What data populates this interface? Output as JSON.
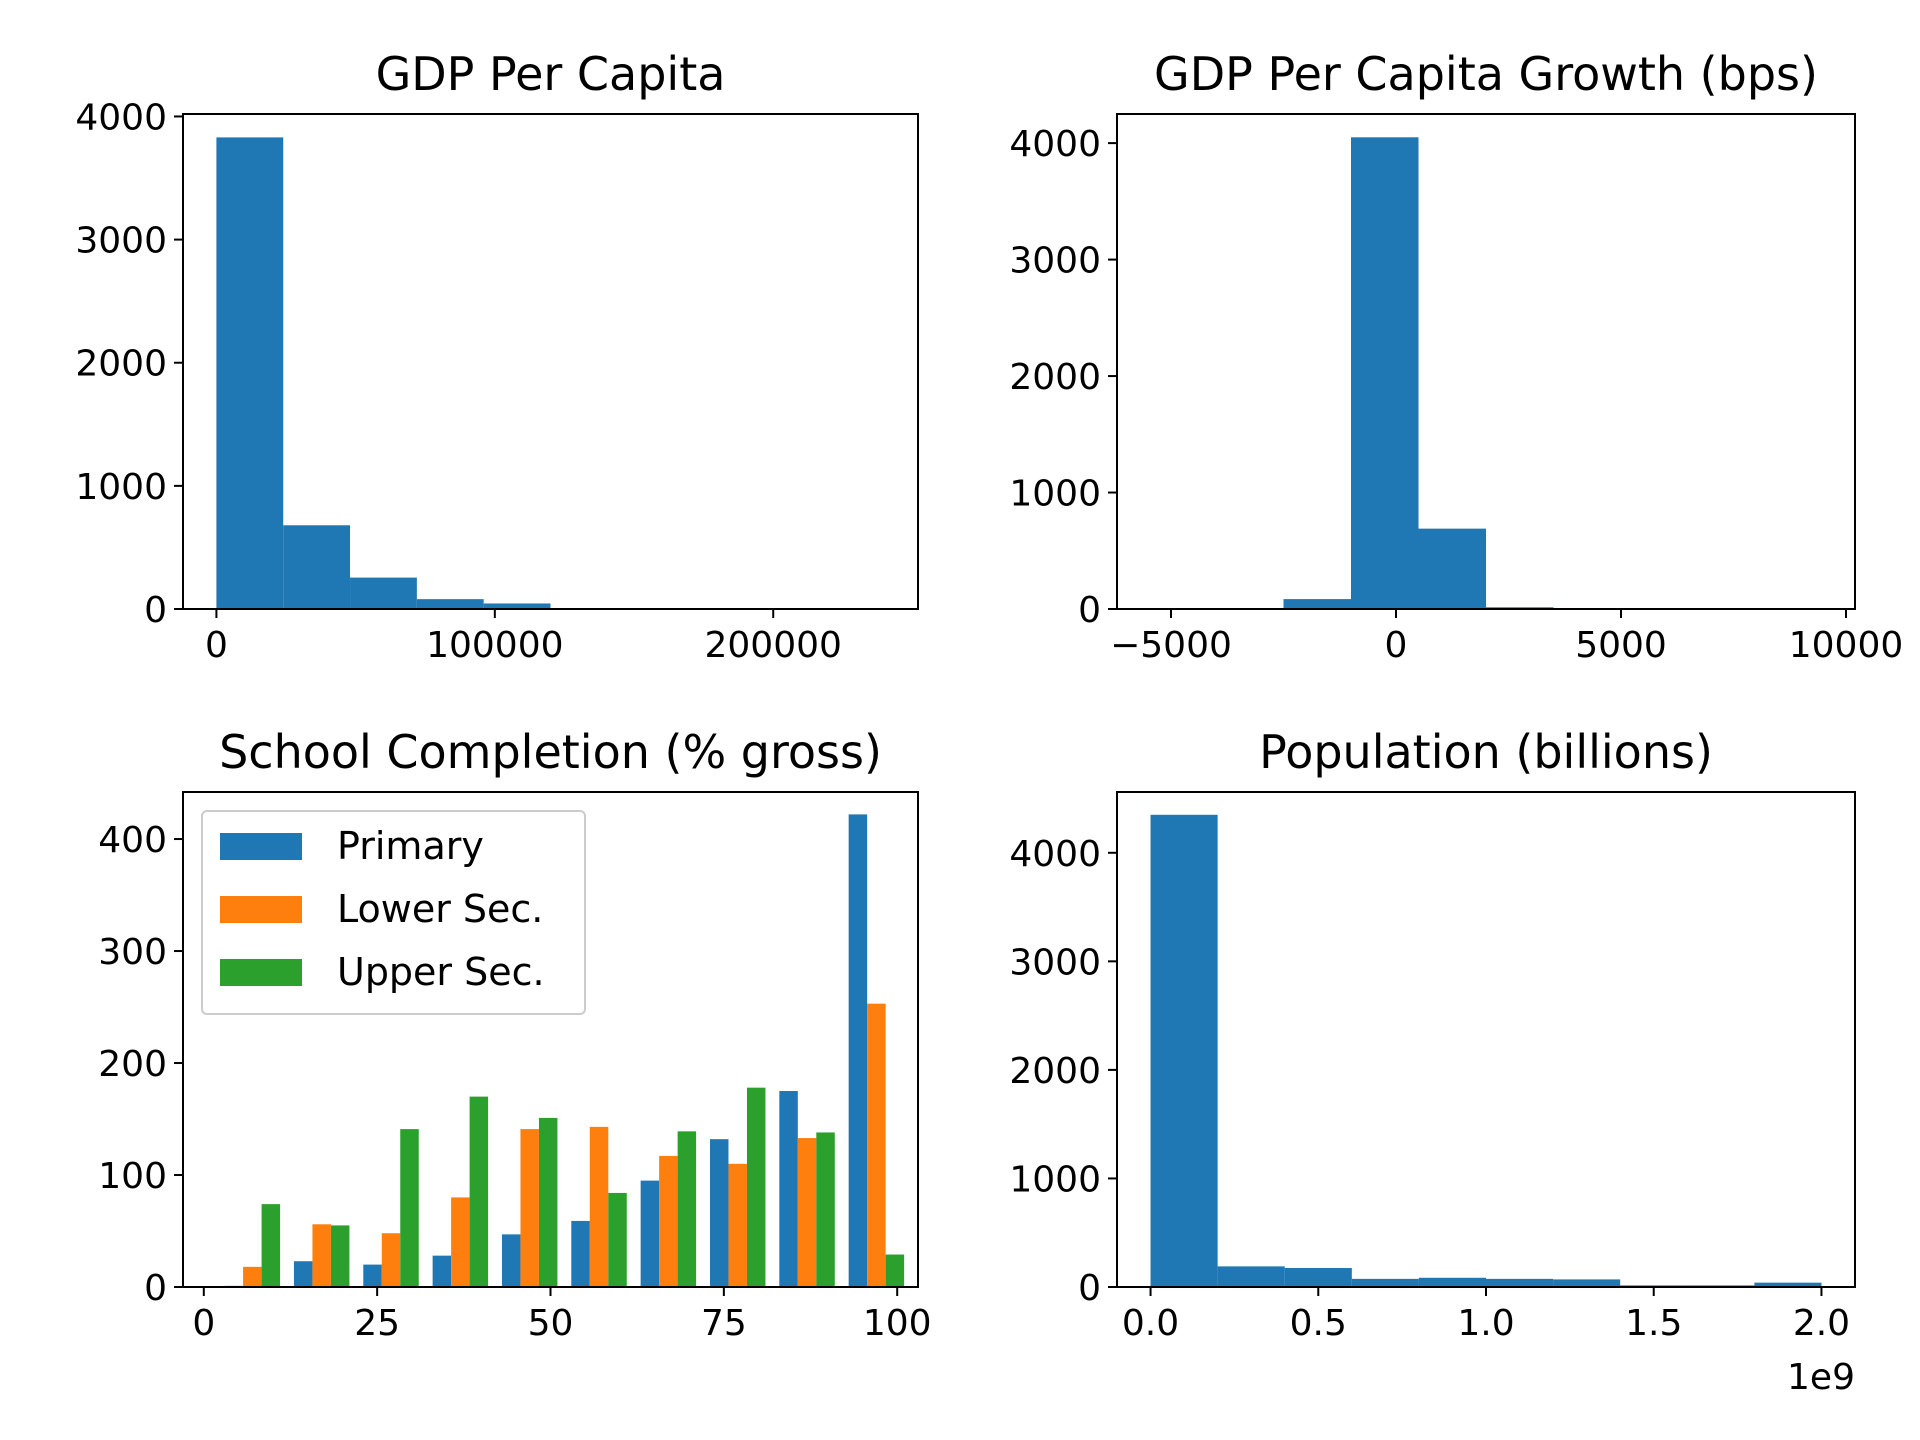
{
  "chart_data": [
    {
      "type": "bar",
      "title": "GDP Per Capita",
      "xlabel": "",
      "ylabel": "",
      "bar_color": "#1f77b4",
      "xlim": [
        -12000,
        252000
      ],
      "ylim": [
        0,
        4020
      ],
      "xticks": [
        0,
        100000,
        200000
      ],
      "xtick_labels": [
        "0",
        "100000",
        "200000"
      ],
      "yticks": [
        0,
        1000,
        2000,
        3000,
        4000
      ],
      "ytick_labels": [
        "0",
        "1000",
        "2000",
        "3000",
        "4000"
      ],
      "bin_edges": [
        0,
        24000,
        48000,
        72000,
        96000,
        120000,
        144000,
        168000,
        192000,
        216000,
        240000
      ],
      "counts": [
        3830,
        680,
        255,
        80,
        45,
        8,
        3,
        2,
        1,
        1
      ]
    },
    {
      "type": "bar",
      "title": "GDP Per Capita Growth (bps)",
      "xlabel": "",
      "ylabel": "",
      "bar_color": "#1f77b4",
      "xlim": [
        -6200,
        10200
      ],
      "ylim": [
        0,
        4250
      ],
      "xticks": [
        -5000,
        0,
        5000,
        10000
      ],
      "xtick_labels": [
        "−5000",
        "0",
        "5000",
        "10000"
      ],
      "yticks": [
        0,
        1000,
        2000,
        3000,
        4000
      ],
      "ytick_labels": [
        "0",
        "1000",
        "2000",
        "3000",
        "4000"
      ],
      "bin_edges": [
        -5500,
        -4000,
        -2500,
        -1000,
        500,
        2000,
        3500,
        5000,
        6500,
        8000,
        9500
      ],
      "counts": [
        1,
        3,
        85,
        4050,
        690,
        15,
        2,
        1,
        1,
        1
      ]
    },
    {
      "type": "bar",
      "title": "School Completion (% gross)",
      "xlabel": "",
      "ylabel": "",
      "xlim": [
        -3,
        103
      ],
      "ylim": [
        0,
        442
      ],
      "xticks": [
        0,
        25,
        50,
        75,
        100
      ],
      "xtick_labels": [
        "0",
        "25",
        "50",
        "75",
        "100"
      ],
      "yticks": [
        0,
        100,
        200,
        300,
        400
      ],
      "ytick_labels": [
        "0",
        "100",
        "200",
        "300",
        "400"
      ],
      "bin_edges": [
        2,
        12,
        22,
        32,
        42,
        52,
        62,
        72,
        82,
        92,
        102
      ],
      "legend_position": "upper left",
      "series": [
        {
          "name": "Primary",
          "color": "#1f77b4",
          "values": [
            1,
            23,
            20,
            28,
            47,
            59,
            95,
            132,
            175,
            422
          ]
        },
        {
          "name": "Lower Sec.",
          "color": "#ff7f0e",
          "values": [
            18,
            56,
            48,
            80,
            141,
            143,
            117,
            110,
            133,
            253
          ]
        },
        {
          "name": "Upper Sec.",
          "color": "#2ca02c",
          "values": [
            74,
            55,
            141,
            170,
            151,
            84,
            139,
            178,
            138,
            29
          ]
        }
      ]
    },
    {
      "type": "bar",
      "title": "Population (billions)",
      "xlabel": "",
      "ylabel": "",
      "bar_color": "#1f77b4",
      "xlim": [
        -0.1,
        2.1
      ],
      "ylim": [
        0,
        4560
      ],
      "xticks": [
        0.0,
        0.5,
        1.0,
        1.5,
        2.0
      ],
      "xtick_labels": [
        "0.0",
        "0.5",
        "1.0",
        "1.5",
        "2.0"
      ],
      "yticks": [
        0,
        1000,
        2000,
        3000,
        4000
      ],
      "ytick_labels": [
        "0",
        "1000",
        "2000",
        "3000",
        "4000"
      ],
      "offset_text": "1e9",
      "bin_edges": [
        0.0,
        0.2,
        0.4,
        0.6,
        0.8,
        1.0,
        1.2,
        1.4,
        1.6,
        1.8,
        2.0
      ],
      "counts": [
        4350,
        190,
        175,
        75,
        85,
        75,
        70,
        15,
        15,
        40
      ]
    }
  ]
}
